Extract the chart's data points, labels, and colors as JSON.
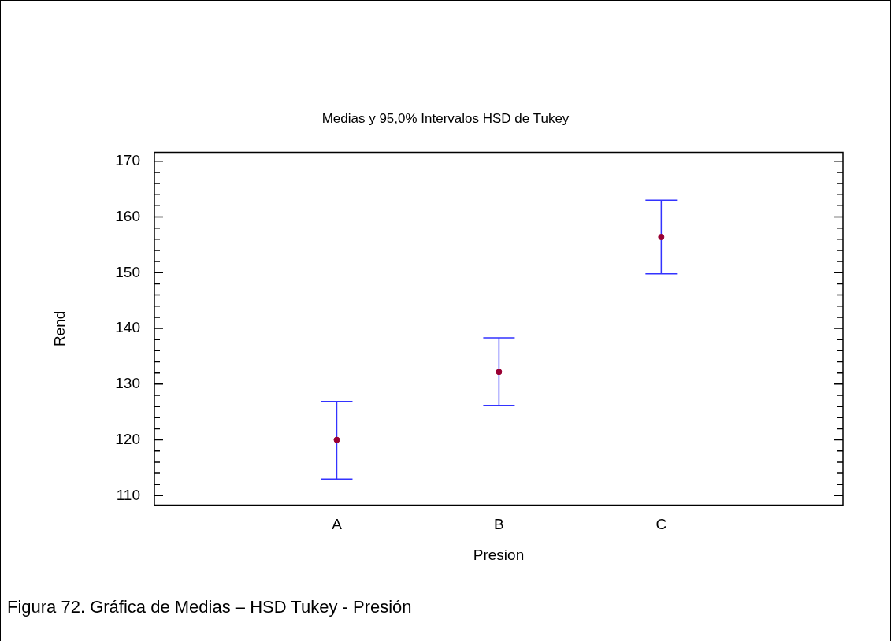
{
  "chart_data": {
    "type": "scatter",
    "title": "Medias y 95,0% Intervalos HSD de Tukey",
    "xlabel": "Presion",
    "ylabel": "Rend",
    "categories": [
      "A",
      "B",
      "C"
    ],
    "values": [
      120.0,
      132.2,
      156.4
    ],
    "errors": [
      [
        113.0,
        126.9
      ],
      [
        126.2,
        138.3
      ],
      [
        149.8,
        163.0
      ]
    ],
    "color": "#990033",
    "marker": "circle",
    "ylim": [
      108.3,
      171.6
    ],
    "yticks": [
      110,
      {
        "value": 112,
        "label": null
      },
      {
        "value": 114,
        "label": null
      },
      {
        "value": 116,
        "label": null
      },
      {
        "value": 118,
        "label": null
      },
      120,
      {
        "value": 122,
        "label": null
      },
      {
        "value": 124,
        "label": null
      },
      {
        "value": 126,
        "label": null
      },
      {
        "value": 128,
        "label": null
      },
      130,
      {
        "value": 132,
        "label": null
      },
      {
        "value": 134,
        "label": null
      },
      {
        "value": 136,
        "label": null
      },
      {
        "value": 138,
        "label": null
      },
      140,
      {
        "value": 142,
        "label": null
      },
      {
        "value": 144,
        "label": null
      },
      {
        "value": 146,
        "label": null
      },
      {
        "value": 148,
        "label": null
      },
      150,
      {
        "value": 152,
        "label": null
      },
      {
        "value": 154,
        "label": null
      },
      {
        "value": 156,
        "label": null
      },
      {
        "value": 158,
        "label": null
      },
      160,
      {
        "value": 162,
        "label": null
      },
      {
        "value": 164,
        "label": null
      },
      {
        "value": 166,
        "label": null
      },
      {
        "value": 168,
        "label": null
      },
      170
    ],
    "annotations": [
      "Figura 72. Gráfica de Medias – HSD Tukey - Presión"
    ]
  }
}
